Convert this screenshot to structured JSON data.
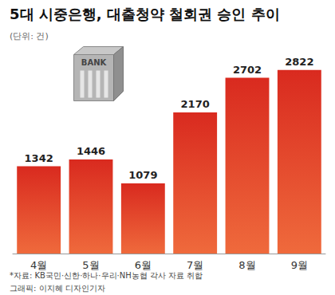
{
  "chart_data": {
    "type": "bar",
    "title": "5대 시중은행, 대출청약 철회권 승인 추이",
    "subtitle": "(단위: 건)",
    "annotations": [
      "*자료: KB국민·신한·하나·우리·NH농협 각사 자료 취합",
      "그래픽: 이지혜 디자인기자"
    ],
    "icon_text": "BANK",
    "categories": [
      "4월",
      "5월",
      "6월",
      "7월",
      "8월",
      "9월"
    ],
    "values": [
      1342,
      1446,
      1079,
      2170,
      2702,
      2822
    ],
    "color": "#d92a1f",
    "ylim": [
      0,
      3200
    ],
    "grid": false,
    "data_labels": true,
    "tick_labels": "x"
  }
}
